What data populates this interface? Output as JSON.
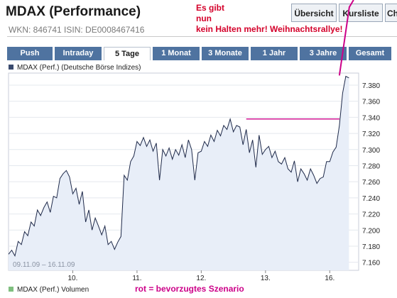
{
  "header": {
    "title": "MDAX (Performance)",
    "ids": "WKN: 846741  ISIN: DE0008467416",
    "buttons": [
      "Übersicht",
      "Kursliste",
      "Ch"
    ]
  },
  "tabs": [
    {
      "label": "Push",
      "active": false
    },
    {
      "label": "Intraday",
      "active": false
    },
    {
      "label": "5 Tage",
      "active": true
    },
    {
      "label": "1 Monat",
      "active": false
    },
    {
      "label": "3 Monate",
      "active": false
    },
    {
      "label": "1 Jahr",
      "active": false
    },
    {
      "label": "3 Jahre",
      "active": false
    },
    {
      "label": "Gesamt",
      "active": false
    }
  ],
  "annotations": {
    "top_lines": [
      "Es gibt",
      "nun",
      "kein Halten mehr! Weihnachtsrallye!"
    ],
    "bottom": "rot = bevorzugtes Szenario"
  },
  "colors": {
    "tab": "#4f73a0",
    "line": "#1f2a4a",
    "area": "#e8eef8",
    "annotation_red": "#d4002a",
    "annotation_magenta": "#cc0088",
    "volume_legend": "#7fbf7f"
  },
  "chart_data": {
    "type": "line",
    "legend": "MDAX (Perf.) (Deutsche Börse Indizes)",
    "volume_legend": "MDAX (Perf.) Volumen",
    "date_range": "09.11.09 – 16.11.09",
    "x_tick_labels": [
      "10.",
      "11.",
      "12.",
      "13.",
      "16."
    ],
    "y_tick_labels": [
      "7.160",
      "7.180",
      "7.200",
      "7.220",
      "7.240",
      "7.260",
      "7.280",
      "7.300",
      "7.320",
      "7.340",
      "7.360",
      "7.380"
    ],
    "ylim": [
      7150,
      7395
    ],
    "xlim": [
      0,
      5.45
    ],
    "grid": "horizontal",
    "area_fill": true,
    "series": [
      {
        "x": [
          0.0,
          0.05,
          0.1,
          0.15,
          0.2,
          0.25,
          0.3,
          0.35,
          0.4,
          0.45,
          0.5,
          0.55,
          0.6,
          0.65,
          0.7,
          0.75,
          0.8,
          0.85,
          0.9,
          0.95,
          1.0,
          1.05,
          1.1,
          1.15,
          1.2,
          1.25,
          1.3,
          1.35,
          1.4,
          1.45,
          1.5,
          1.55,
          1.6,
          1.65,
          1.7,
          1.75,
          1.8,
          1.85,
          1.9,
          1.95,
          2.0,
          2.05,
          2.1,
          2.15,
          2.2,
          2.25,
          2.3,
          2.35,
          2.4,
          2.45,
          2.5,
          2.55,
          2.6,
          2.65,
          2.7,
          2.75,
          2.8,
          2.85,
          2.9,
          2.95,
          3.0,
          3.05,
          3.1,
          3.15,
          3.2,
          3.25,
          3.3,
          3.35,
          3.4,
          3.45,
          3.5,
          3.55,
          3.6,
          3.65,
          3.7,
          3.75,
          3.8,
          3.85,
          3.9,
          3.95,
          4.0,
          4.05,
          4.1,
          4.15,
          4.2,
          4.25,
          4.3,
          4.35,
          4.4,
          4.45,
          4.5,
          4.55,
          4.6,
          4.65,
          4.7,
          4.75,
          4.8,
          4.85,
          4.9,
          4.95,
          5.0,
          5.05,
          5.1,
          5.15,
          5.2,
          5.25,
          5.3
        ],
        "values": [
          7170,
          7175,
          7168,
          7186,
          7182,
          7198,
          7193,
          7210,
          7205,
          7225,
          7218,
          7228,
          7235,
          7222,
          7242,
          7240,
          7264,
          7270,
          7274,
          7266,
          7245,
          7252,
          7232,
          7248,
          7210,
          7225,
          7200,
          7215,
          7205,
          7194,
          7205,
          7182,
          7186,
          7176,
          7185,
          7192,
          7268,
          7262,
          7285,
          7292,
          7310,
          7305,
          7315,
          7304,
          7312,
          7298,
          7308,
          7262,
          7300,
          7292,
          7302,
          7288,
          7300,
          7293,
          7306,
          7290,
          7312,
          7300,
          7262,
          7296,
          7298,
          7310,
          7304,
          7318,
          7310,
          7324,
          7317,
          7330,
          7325,
          7338,
          7322,
          7330,
          7328,
          7306,
          7325,
          7296,
          7312,
          7278,
          7318,
          7294,
          7300,
          7304,
          7290,
          7298,
          7285,
          7282,
          7290,
          7276,
          7272,
          7286,
          7260,
          7276,
          7270,
          7262,
          7276,
          7268,
          7258,
          7264,
          7266,
          7285,
          7285,
          7297,
          7303,
          7330,
          7370,
          7391,
          7389
        ]
      }
    ],
    "drawings": {
      "horizontal_level": {
        "value": 7338,
        "x_from": 3.7,
        "x_to": 5.55
      },
      "rally_arrow": {
        "from": {
          "x": 5.15,
          "y": 7392
        },
        "to": {
          "x": 5.45,
          "y": 7460
        }
      }
    }
  }
}
